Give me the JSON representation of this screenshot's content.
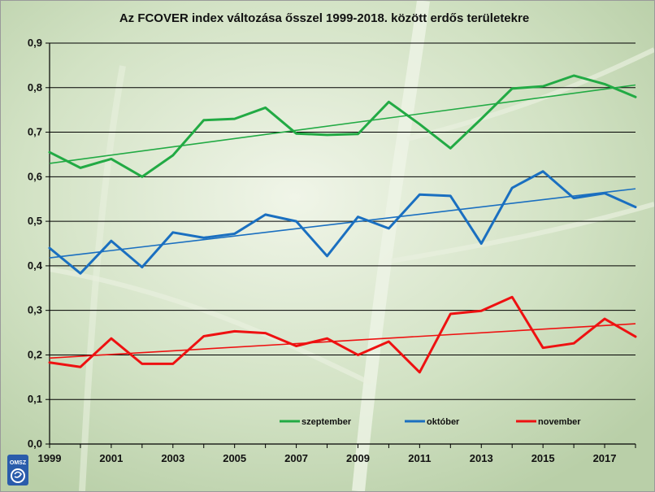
{
  "chart_data": {
    "type": "line",
    "title": "Az FCOVER index változása ősszel 1999-2018. között erdős területekre",
    "xlabel": "",
    "ylabel": "",
    "x": [
      1999,
      2000,
      2001,
      2002,
      2003,
      2004,
      2005,
      2006,
      2007,
      2008,
      2009,
      2010,
      2011,
      2012,
      2013,
      2014,
      2015,
      2016,
      2017,
      2018
    ],
    "xlim": [
      1999,
      2018
    ],
    "ylim": [
      0,
      0.9
    ],
    "x_tick_labels": [
      "1999",
      "2001",
      "2003",
      "2005",
      "2007",
      "2009",
      "2011",
      "2013",
      "2015",
      "2017"
    ],
    "y_tick_labels": [
      "0,0",
      "0,1",
      "0,2",
      "0,3",
      "0,4",
      "0,5",
      "0,6",
      "0,7",
      "0,8",
      "0,9"
    ],
    "grid": "horizontal",
    "legend_position": "bottom-inside",
    "series": [
      {
        "name": "szeptember",
        "color": "#22aa44",
        "values": [
          0.655,
          0.62,
          0.64,
          0.6,
          0.648,
          0.727,
          0.73,
          0.755,
          0.697,
          0.694,
          0.696,
          0.768,
          0.718,
          0.664,
          0.73,
          0.798,
          0.803,
          0.827,
          0.808,
          0.779
        ],
        "trend": [
          0.63,
          0.806
        ]
      },
      {
        "name": "október",
        "color": "#1a6fc0",
        "values": [
          0.44,
          0.383,
          0.456,
          0.397,
          0.475,
          0.463,
          0.472,
          0.515,
          0.5,
          0.422,
          0.51,
          0.484,
          0.56,
          0.557,
          0.45,
          0.575,
          0.612,
          0.552,
          0.563,
          0.532
        ],
        "trend": [
          0.418,
          0.573
        ]
      },
      {
        "name": "november",
        "color": "#ee1111",
        "values": [
          0.183,
          0.173,
          0.237,
          0.18,
          0.18,
          0.242,
          0.253,
          0.249,
          0.22,
          0.237,
          0.2,
          0.23,
          0.161,
          0.292,
          0.299,
          0.33,
          0.216,
          0.226,
          0.281,
          0.241
        ],
        "trend": [
          0.193,
          0.27
        ]
      }
    ]
  },
  "logo": {
    "text": "OMSZ",
    "color": "#2a5cab"
  }
}
